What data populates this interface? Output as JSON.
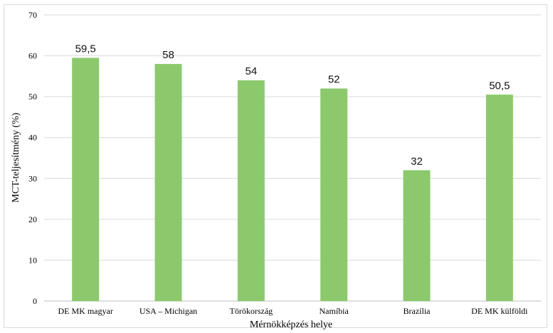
{
  "chart_data": {
    "type": "bar",
    "categories": [
      "DE MK magyar",
      "USA – Michigan",
      "Törökország",
      "Namíbia",
      "Brazília",
      "DE MK külföldi"
    ],
    "values": [
      59.5,
      58,
      54,
      52,
      32,
      50.5
    ],
    "value_labels": [
      "59,5",
      "58",
      "54",
      "52",
      "32",
      "50,5"
    ],
    "title": "",
    "xlabel": "Mérnökképzés helye",
    "ylabel": "MCT-teljesítmény (%)",
    "ylim": [
      0,
      70
    ],
    "yticks": [
      0,
      10,
      20,
      30,
      40,
      50,
      60,
      70
    ],
    "grid": true,
    "legend": "none",
    "bar_color": "#8cc96d"
  }
}
